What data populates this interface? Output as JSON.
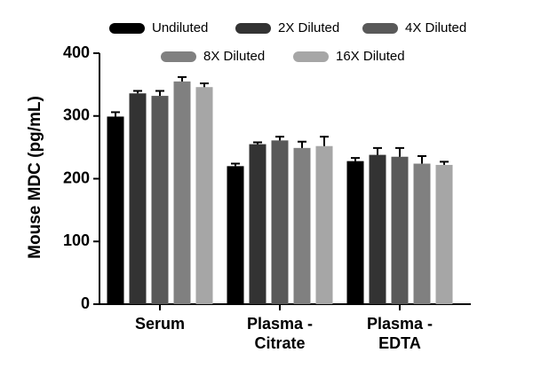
{
  "chart_data": {
    "type": "bar",
    "y_label": "Mouse MDC (pg/mL)",
    "categories": [
      "Serum",
      "Plasma -\nCitrate",
      "Plasma -\nEDTA"
    ],
    "series": [
      {
        "name": "Undiluted",
        "color": "#000000",
        "values": [
          299,
          220,
          228
        ],
        "errors": [
          7,
          4,
          5
        ]
      },
      {
        "name": "2X Diluted",
        "color": "#333333",
        "values": [
          336,
          255,
          238
        ],
        "errors": [
          4,
          3,
          11
        ]
      },
      {
        "name": "4X Diluted",
        "color": "#595959",
        "values": [
          332,
          261,
          235
        ],
        "errors": [
          8,
          6,
          14
        ]
      },
      {
        "name": "8X Diluted",
        "color": "#808080",
        "values": [
          355,
          249,
          224
        ],
        "errors": [
          7,
          10,
          12
        ]
      },
      {
        "name": "16X Diluted",
        "color": "#a6a6a6",
        "values": [
          346,
          252,
          222
        ],
        "errors": [
          6,
          15,
          5
        ]
      }
    ],
    "ylim": [
      0,
      400
    ],
    "yticks": [
      0,
      100,
      200,
      300,
      400
    ]
  }
}
